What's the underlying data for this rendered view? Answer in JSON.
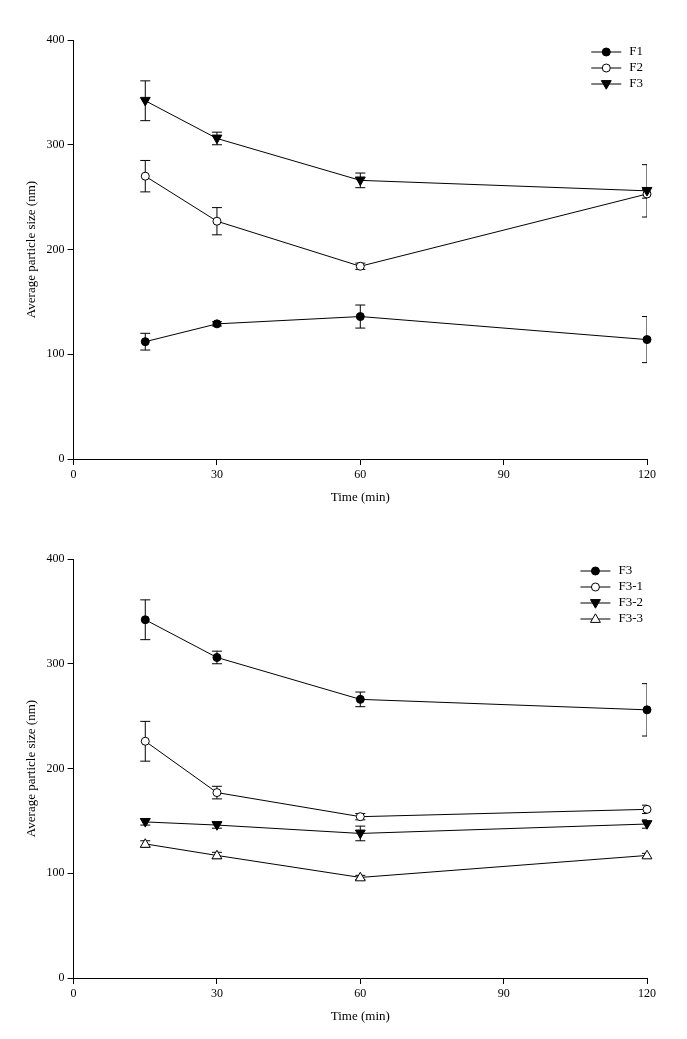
{
  "chart_data": [
    {
      "type": "line",
      "x_label": "Time (min)",
      "y_label": "Average particle size (nm)",
      "x": [
        15,
        30,
        60,
        120
      ],
      "xlim": [
        0,
        120
      ],
      "xticks": [
        0,
        30,
        60,
        90,
        120
      ],
      "ylim": [
        0,
        400
      ],
      "yticks": [
        0,
        100,
        200,
        300,
        400
      ],
      "grid": false,
      "legend": "upper right",
      "series": [
        {
          "name": "F1",
          "color": "#000000",
          "marker": "circle",
          "values": [
            112,
            129,
            136,
            114
          ],
          "errors": [
            8,
            2,
            11,
            22
          ]
        },
        {
          "name": "F2",
          "color": "#000000",
          "marker": "circle_open",
          "values": [
            270,
            227,
            184,
            253
          ],
          "errors": [
            15,
            13,
            3,
            4
          ]
        },
        {
          "name": "F3",
          "color": "#000000",
          "marker": "triangle_down",
          "values": [
            342,
            306,
            266,
            256
          ],
          "errors": [
            19,
            6,
            7,
            25
          ]
        }
      ]
    },
    {
      "type": "line",
      "x_label": "Time (min)",
      "y_label": "Average particle size (nm)",
      "x": [
        15,
        30,
        60,
        120
      ],
      "xlim": [
        0,
        120
      ],
      "xticks": [
        0,
        30,
        60,
        90,
        120
      ],
      "ylim": [
        0,
        400
      ],
      "yticks": [
        0,
        100,
        200,
        300,
        400
      ],
      "grid": false,
      "legend": "upper right",
      "series": [
        {
          "name": "F3",
          "color": "#000000",
          "marker": "circle",
          "values": [
            342,
            306,
            266,
            256
          ],
          "errors": [
            19,
            6,
            7,
            25
          ]
        },
        {
          "name": "F3-1",
          "color": "#000000",
          "marker": "circle_open",
          "values": [
            226,
            177,
            154,
            161
          ],
          "errors": [
            19,
            6,
            3,
            4
          ]
        },
        {
          "name": "F3-2",
          "color": "#000000",
          "marker": "triangle_down",
          "values": [
            149,
            146,
            138,
            147
          ],
          "errors": [
            3,
            3,
            7,
            4
          ]
        },
        {
          "name": "F3-3",
          "color": "#000000",
          "marker": "triangle_open",
          "values": [
            128,
            117,
            96,
            117
          ],
          "errors": [
            3,
            3,
            2,
            2
          ]
        }
      ]
    }
  ]
}
